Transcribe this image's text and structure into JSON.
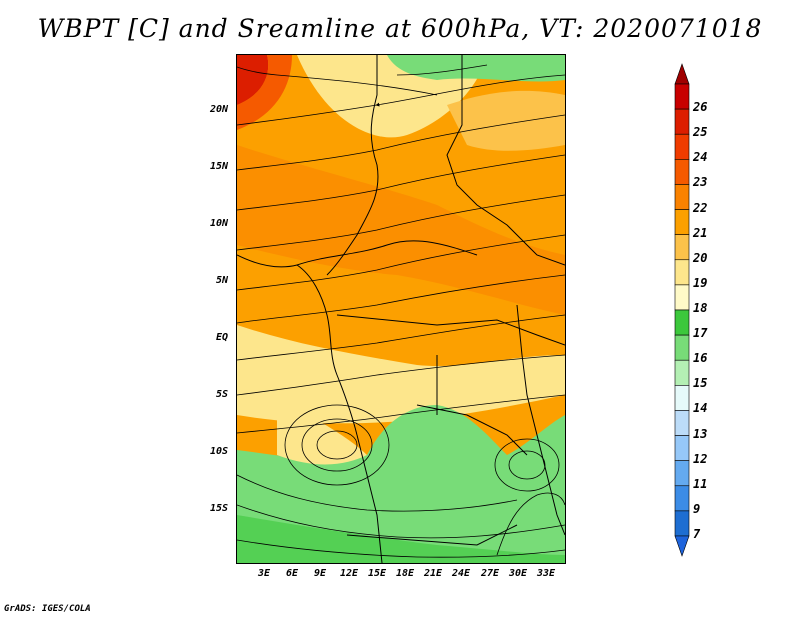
{
  "title": "WBPT [C] and Sreamline at 600hPa, VT: 2020071018",
  "credit": "GrADS: IGES/COLA",
  "map": {
    "variable": "Wet-bulb potential temperature",
    "units": "C",
    "level": "600hPa",
    "valid_time": "2020071018",
    "lat_ticks": [
      "20N",
      "15N",
      "10N",
      "5N",
      "EQ",
      "5S",
      "10S",
      "15S"
    ],
    "lon_ticks": [
      "3E",
      "6E",
      "9E",
      "12E",
      "15E",
      "18E",
      "21E",
      "24E",
      "27E",
      "30E",
      "33E"
    ]
  },
  "colorbar": {
    "levels": [
      "26",
      "25",
      "24",
      "23",
      "22",
      "21",
      "20",
      "19",
      "18",
      "17",
      "16",
      "15",
      "14",
      "13",
      "12",
      "11",
      "9",
      "7"
    ],
    "colors": [
      "#c80000",
      "#dc1e00",
      "#f03c00",
      "#f55a00",
      "#fa8200",
      "#fca000",
      "#fcc24a",
      "#fde68c",
      "#fffac8",
      "#3cc83c",
      "#78dc78",
      "#b4f0b4",
      "#e6fafa",
      "#bcdcf8",
      "#96c8f8",
      "#64aaf0",
      "#3c8ce6",
      "#1e6ed2"
    ],
    "top_arrow_color": "#a00000",
    "bottom_arrow_color": "#1e64dc"
  }
}
